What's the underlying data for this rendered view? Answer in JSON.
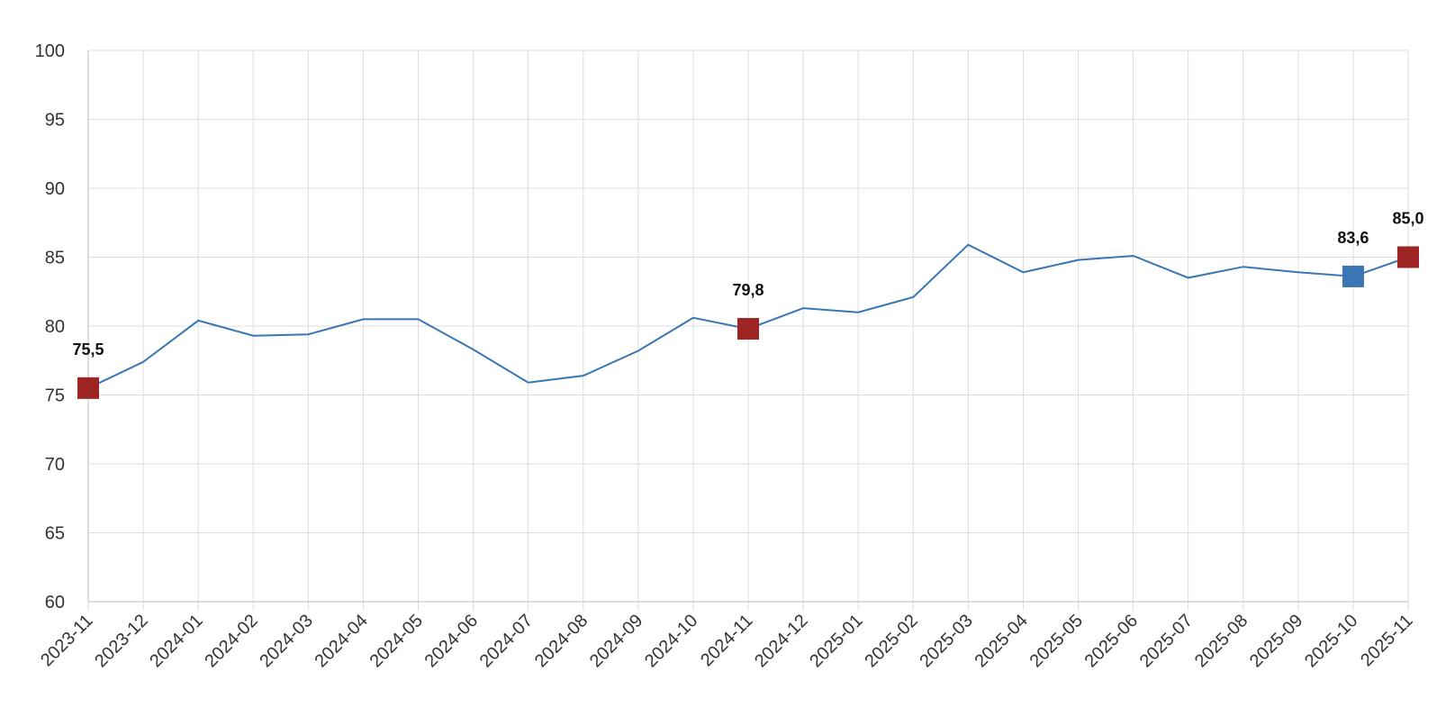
{
  "chart_data": {
    "type": "line",
    "title": "",
    "xlabel": "",
    "ylabel": "",
    "ylim": [
      60,
      100
    ],
    "y_ticks": [
      "60",
      "65",
      "70",
      "75",
      "80",
      "85",
      "90",
      "95",
      "100"
    ],
    "grid": true,
    "legend": "none",
    "x": [
      "2023-11",
      "2023-12",
      "2024-01",
      "2024-02",
      "2024-03",
      "2024-04",
      "2024-05",
      "2024-06",
      "2024-07",
      "2024-08",
      "2024-09",
      "2024-10",
      "2024-11",
      "2024-12",
      "2025-01",
      "2025-02",
      "2025-03",
      "2025-04",
      "2025-05",
      "2025-06",
      "2025-07",
      "2025-08",
      "2025-09",
      "2025-10",
      "2025-11"
    ],
    "series": [
      {
        "color": "#3a76b4",
        "values": [
          75.5,
          77.4,
          80.4,
          79.3,
          79.4,
          80.5,
          80.5,
          78.3,
          75.9,
          76.4,
          78.2,
          80.6,
          79.8,
          81.3,
          81.0,
          82.1,
          85.9,
          83.9,
          84.8,
          85.1,
          83.5,
          84.3,
          83.9,
          83.6,
          85.0
        ]
      }
    ],
    "highlighted_points": [
      {
        "x": "2023-11",
        "value": 75.5,
        "label": "75,5",
        "color": "#9f2424",
        "marker": "square"
      },
      {
        "x": "2024-11",
        "value": 79.8,
        "label": "79,8",
        "color": "#9f2424",
        "marker": "square"
      },
      {
        "x": "2025-10",
        "value": 83.6,
        "label": "83,6",
        "color": "#3a76b4",
        "marker": "square"
      },
      {
        "x": "2025-11",
        "value": 85.0,
        "label": "85,0",
        "color": "#9f2424",
        "marker": "square"
      }
    ]
  }
}
